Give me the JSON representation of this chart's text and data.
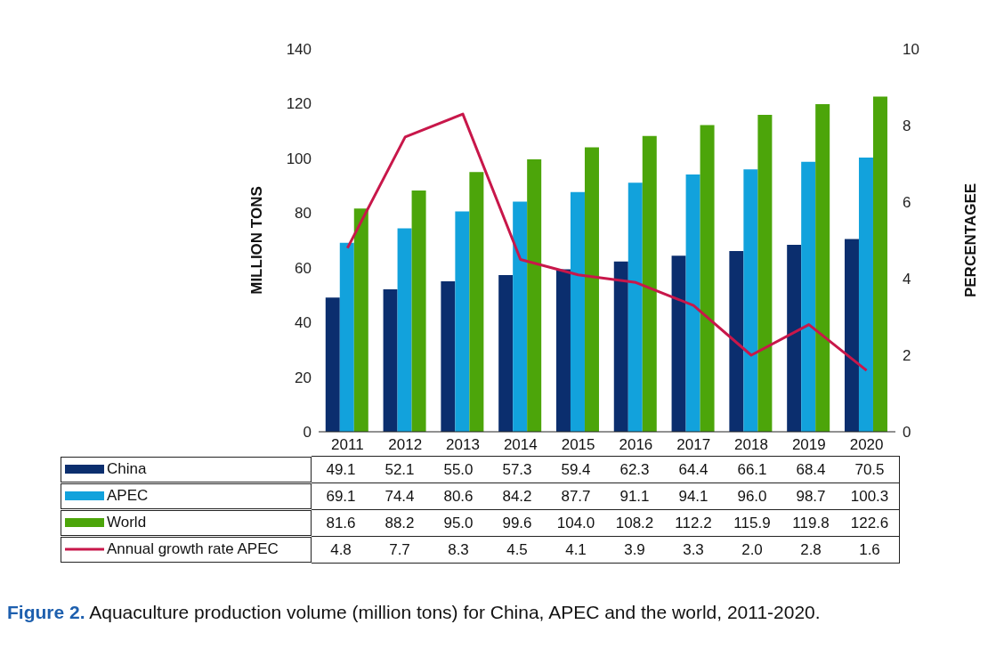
{
  "chart_data": {
    "type": "bar",
    "categories": [
      "2011",
      "2012",
      "2013",
      "2014",
      "2015",
      "2016",
      "2017",
      "2018",
      "2019",
      "2020"
    ],
    "series": [
      {
        "name": "China",
        "color": "#0b2e6e",
        "values": [
          49.1,
          52.1,
          55.0,
          57.3,
          59.4,
          62.3,
          64.4,
          66.1,
          68.4,
          70.5
        ],
        "value_labels": [
          "49.1",
          "52.1",
          "55.0",
          "57.3",
          "59.4",
          "62.3",
          "64.4",
          "66.1",
          "68.4",
          "70.5"
        ]
      },
      {
        "name": "APEC",
        "color": "#12a2dc",
        "values": [
          69.1,
          74.4,
          80.6,
          84.2,
          87.7,
          91.1,
          94.1,
          96.0,
          98.7,
          100.3
        ],
        "value_labels": [
          "69.1",
          "74.4",
          "80.6",
          "84.2",
          "87.7",
          "91.1",
          "94.1",
          "96.0",
          "98.7",
          "100.3"
        ]
      },
      {
        "name": "World",
        "color": "#4ca50a",
        "values": [
          81.6,
          88.2,
          95.0,
          99.6,
          104.0,
          108.2,
          112.2,
          115.9,
          119.8,
          122.6
        ],
        "value_labels": [
          "81.6",
          "88.2",
          "95.0",
          "99.6",
          "104.0",
          "108.2",
          "112.2",
          "115.9",
          "119.8",
          "122.6"
        ]
      },
      {
        "name": "Annual growth rate APEC",
        "type": "line",
        "axis": "y2",
        "color": "#c8174a",
        "values": [
          4.8,
          7.7,
          8.3,
          4.5,
          4.1,
          3.9,
          3.3,
          2.0,
          2.8,
          1.6
        ],
        "value_labels": [
          "4.8",
          "7.7",
          "8.3",
          "4.5",
          "4.1",
          "3.9",
          "3.3",
          "2.0",
          "2.8",
          "1.6"
        ]
      }
    ],
    "ylabel": "MILLION TONS",
    "y2label": "PERCENTAGEE",
    "ylim": [
      0,
      140
    ],
    "yticks": [
      0,
      20,
      40,
      60,
      80,
      100,
      120,
      140
    ],
    "y2lim": [
      0,
      10
    ],
    "y2ticks": [
      0,
      2,
      4,
      6,
      8,
      10
    ],
    "legend": "bottom",
    "marker": "none",
    "line_style": "solid",
    "annotations": [
      "Figure 2. Aquaculture production volume (million tons) for China, APEC and the world, 2011-2020."
    ]
  }
}
